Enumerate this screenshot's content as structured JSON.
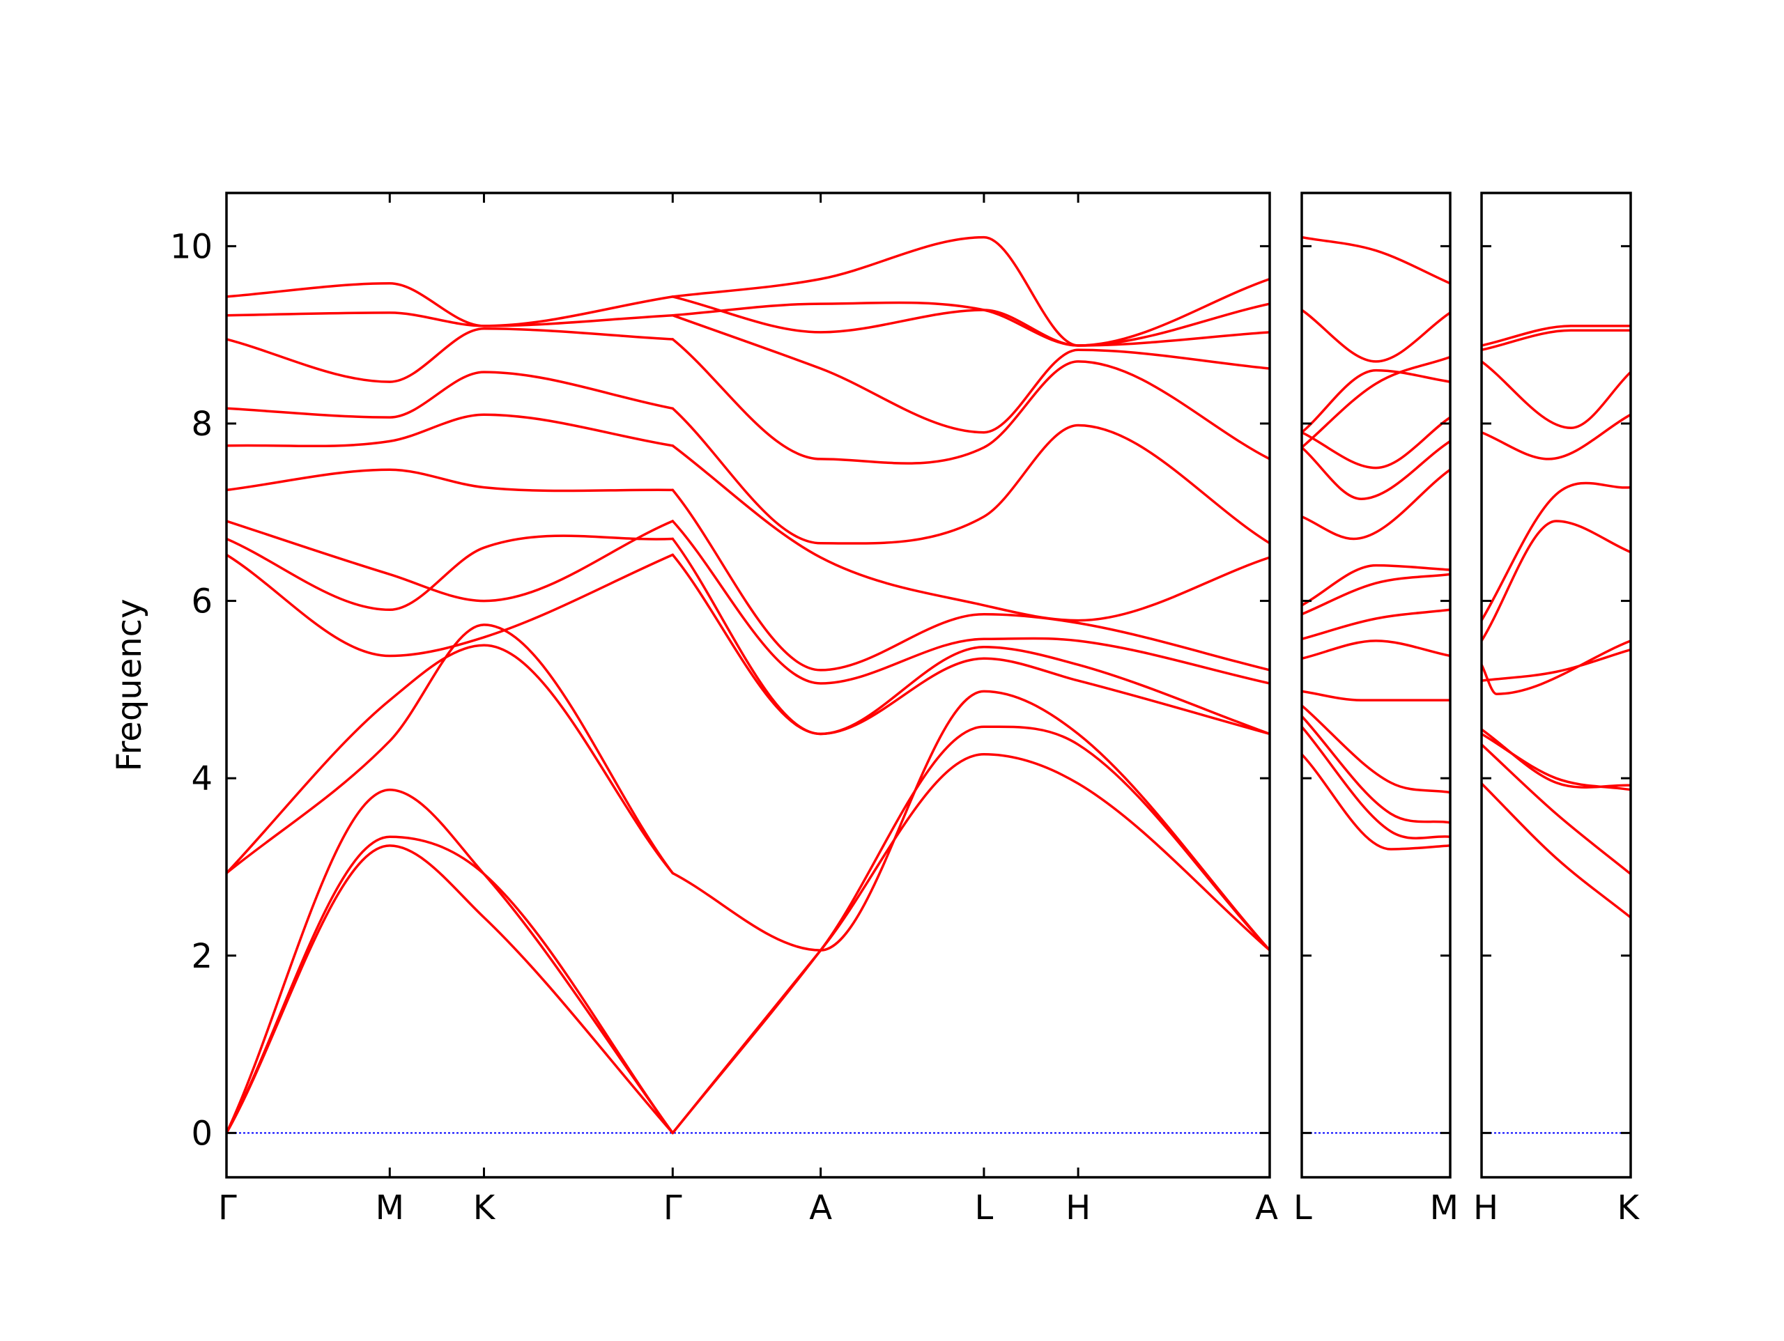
{
  "chart_data": {
    "type": "line",
    "title": "",
    "ylabel": "Frequency",
    "xlabel": "",
    "ylim": [
      -0.5,
      10.6
    ],
    "yticks": [
      0,
      2,
      4,
      6,
      8,
      10
    ],
    "ytick_labels": [
      "0",
      "2",
      "4",
      "6",
      "8",
      "10"
    ],
    "grid": false,
    "legend": "none",
    "colors": {
      "bands": "#ff0000",
      "zero_line": "#0000ff",
      "frame": "#000000"
    },
    "panels": [
      {
        "id": "main",
        "path_labels": [
          "Γ",
          "M",
          "K",
          "Γ",
          "A",
          "L",
          "H",
          "A"
        ],
        "path_positions": [
          0,
          0.577,
          0.91,
          1.577,
          2.1,
          2.677,
          3.01,
          3.687
        ],
        "bands": [
          [
            [
              0,
              0
            ],
            [
              0.577,
              3.24
            ],
            [
              0.91,
              2.43
            ],
            [
              1.577,
              0
            ]
          ],
          [
            [
              0,
              0
            ],
            [
              0.577,
              3.34
            ],
            [
              0.91,
              2.92
            ],
            [
              1.577,
              0
            ]
          ],
          [
            [
              0,
              0
            ],
            [
              0.577,
              3.87
            ],
            [
              0.91,
              2.92
            ],
            [
              1.577,
              0
            ]
          ],
          [
            [
              0,
              2.93
            ],
            [
              0.577,
              4.42
            ],
            [
              0.91,
              5.73
            ],
            [
              1.577,
              2.93
            ]
          ],
          [
            [
              0,
              2.93
            ],
            [
              0.577,
              4.88
            ],
            [
              0.91,
              5.5
            ],
            [
              1.577,
              2.93
            ]
          ],
          [
            [
              0,
              6.52
            ],
            [
              0.577,
              5.38
            ],
            [
              0.91,
              5.59
            ],
            [
              1.577,
              6.52
            ]
          ],
          [
            [
              0,
              6.7
            ],
            [
              0.577,
              5.9
            ],
            [
              0.91,
              6.6
            ],
            [
              1.577,
              6.7
            ]
          ],
          [
            [
              0,
              6.9
            ],
            [
              0.577,
              6.3
            ],
            [
              0.91,
              6.0
            ],
            [
              1.577,
              6.9
            ]
          ],
          [
            [
              0,
              7.25
            ],
            [
              0.577,
              7.48
            ],
            [
              0.91,
              7.28
            ],
            [
              1.577,
              7.25
            ]
          ],
          [
            [
              0,
              7.75
            ],
            [
              0.577,
              7.8
            ],
            [
              0.91,
              8.1
            ],
            [
              1.577,
              7.75
            ]
          ],
          [
            [
              0,
              8.17
            ],
            [
              0.577,
              8.07
            ],
            [
              0.91,
              8.58
            ],
            [
              1.577,
              8.17
            ]
          ],
          [
            [
              0,
              8.95
            ],
            [
              0.577,
              8.47
            ],
            [
              0.91,
              9.07
            ],
            [
              1.577,
              8.95
            ]
          ],
          [
            [
              0,
              9.22
            ],
            [
              0.577,
              9.25
            ],
            [
              0.91,
              9.1
            ],
            [
              1.577,
              9.22
            ]
          ],
          [
            [
              0,
              9.43
            ],
            [
              0.577,
              9.58
            ],
            [
              0.91,
              9.1
            ],
            [
              1.577,
              9.43
            ]
          ],
          [
            [
              1.577,
              0
            ],
            [
              2.1,
              2.06
            ],
            [
              2.677,
              4.27
            ],
            [
              3.01,
              3.94
            ],
            [
              3.687,
              2.06
            ]
          ],
          [
            [
              1.577,
              0
            ],
            [
              2.1,
              2.06
            ],
            [
              2.677,
              4.58
            ],
            [
              3.01,
              4.38
            ],
            [
              3.687,
              2.06
            ]
          ],
          [
            [
              1.577,
              2.93
            ],
            [
              2.1,
              2.06
            ],
            [
              2.677,
              4.98
            ],
            [
              3.01,
              4.5
            ],
            [
              3.687,
              2.06
            ]
          ],
          [
            [
              1.577,
              6.52
            ],
            [
              2.1,
              4.5
            ],
            [
              2.677,
              5.35
            ],
            [
              3.01,
              5.1
            ],
            [
              3.687,
              4.5
            ]
          ],
          [
            [
              1.577,
              6.7
            ],
            [
              2.1,
              4.5
            ],
            [
              2.677,
              5.48
            ],
            [
              3.01,
              5.28
            ],
            [
              3.687,
              4.5
            ]
          ],
          [
            [
              1.577,
              6.9
            ],
            [
              2.1,
              5.07
            ],
            [
              2.677,
              5.57
            ],
            [
              3.01,
              5.55
            ],
            [
              3.687,
              5.07
            ]
          ],
          [
            [
              1.577,
              7.25
            ],
            [
              2.1,
              5.22
            ],
            [
              2.677,
              5.85
            ],
            [
              3.01,
              5.75
            ],
            [
              3.687,
              5.22
            ]
          ],
          [
            [
              1.577,
              7.75
            ],
            [
              2.1,
              6.49
            ],
            [
              2.677,
              5.95
            ],
            [
              3.01,
              5.78
            ],
            [
              3.687,
              6.49
            ]
          ],
          [
            [
              1.577,
              8.17
            ],
            [
              2.1,
              6.65
            ],
            [
              2.677,
              6.95
            ],
            [
              3.01,
              7.98
            ],
            [
              3.687,
              6.65
            ]
          ],
          [
            [
              1.577,
              8.95
            ],
            [
              2.1,
              7.6
            ],
            [
              2.677,
              7.73
            ],
            [
              3.01,
              8.7
            ],
            [
              3.687,
              7.6
            ]
          ],
          [
            [
              1.577,
              9.22
            ],
            [
              2.1,
              8.62
            ],
            [
              2.677,
              7.9
            ],
            [
              3.01,
              8.83
            ],
            [
              3.687,
              8.62
            ]
          ],
          [
            [
              1.577,
              9.43
            ],
            [
              2.1,
              9.03
            ],
            [
              2.677,
              9.28
            ],
            [
              3.01,
              8.88
            ],
            [
              3.687,
              9.03
            ]
          ],
          [
            [
              1.577,
              9.22
            ],
            [
              2.1,
              9.35
            ],
            [
              2.677,
              9.28
            ],
            [
              3.01,
              8.88
            ],
            [
              3.687,
              9.35
            ]
          ],
          [
            [
              1.577,
              9.43
            ],
            [
              2.1,
              9.63
            ],
            [
              2.677,
              10.1
            ],
            [
              3.01,
              8.88
            ],
            [
              3.687,
              9.63
            ]
          ]
        ]
      },
      {
        "id": "L-M",
        "path_labels": [
          "L",
          "M"
        ],
        "path_positions": [
          0,
          1
        ],
        "bands": [
          [
            [
              0,
              4.27
            ],
            [
              0.6,
              3.2
            ],
            [
              1,
              3.24
            ]
          ],
          [
            [
              0,
              4.58
            ],
            [
              0.6,
              3.4
            ],
            [
              1,
              3.34
            ]
          ],
          [
            [
              0,
              4.7
            ],
            [
              0.6,
              3.6
            ],
            [
              1,
              3.5
            ]
          ],
          [
            [
              0,
              4.82
            ],
            [
              0.6,
              3.95
            ],
            [
              1,
              3.84
            ]
          ],
          [
            [
              0,
              4.98
            ],
            [
              0.4,
              4.88
            ],
            [
              1,
              4.88
            ]
          ],
          [
            [
              0,
              5.35
            ],
            [
              0.5,
              5.55
            ],
            [
              1,
              5.38
            ]
          ],
          [
            [
              0,
              5.57
            ],
            [
              0.5,
              5.8
            ],
            [
              1,
              5.9
            ]
          ],
          [
            [
              0,
              5.85
            ],
            [
              0.5,
              6.2
            ],
            [
              1,
              6.3
            ]
          ],
          [
            [
              0,
              5.95
            ],
            [
              0.5,
              6.4
            ],
            [
              1,
              6.35
            ]
          ],
          [
            [
              0,
              6.95
            ],
            [
              0.35,
              6.7
            ],
            [
              1,
              7.48
            ]
          ],
          [
            [
              0,
              7.73
            ],
            [
              0.4,
              7.15
            ],
            [
              1,
              7.8
            ]
          ],
          [
            [
              0,
              7.9
            ],
            [
              0.5,
              7.5
            ],
            [
              1,
              8.07
            ]
          ],
          [
            [
              0,
              7.9
            ],
            [
              0.5,
              8.6
            ],
            [
              1,
              8.47
            ]
          ],
          [
            [
              0,
              7.73
            ],
            [
              0.5,
              8.45
            ],
            [
              1,
              8.75
            ]
          ],
          [
            [
              0,
              9.28
            ],
            [
              0.5,
              8.7
            ],
            [
              1,
              9.25
            ]
          ],
          [
            [
              0,
              10.1
            ],
            [
              0.5,
              9.95
            ],
            [
              1,
              9.58
            ]
          ]
        ]
      },
      {
        "id": "H-K",
        "path_labels": [
          "H",
          "K"
        ],
        "path_positions": [
          0,
          1
        ],
        "bands": [
          [
            [
              0,
              3.94
            ],
            [
              0.5,
              3.1
            ],
            [
              1,
              2.43
            ]
          ],
          [
            [
              0,
              4.38
            ],
            [
              0.5,
              3.6
            ],
            [
              1,
              2.92
            ]
          ],
          [
            [
              0,
              4.5
            ],
            [
              0.5,
              4.0
            ],
            [
              1,
              3.87
            ]
          ],
          [
            [
              0,
              4.55
            ],
            [
              0.5,
              3.95
            ],
            [
              1,
              3.92
            ]
          ],
          [
            [
              0,
              5.1
            ],
            [
              0.5,
              5.2
            ],
            [
              1,
              5.45
            ]
          ],
          [
            [
              0,
              5.28
            ],
            [
              0.1,
              4.95
            ],
            [
              1,
              5.55
            ]
          ],
          [
            [
              0,
              5.55
            ],
            [
              0.5,
              6.9
            ],
            [
              1,
              6.55
            ]
          ],
          [
            [
              0,
              5.78
            ],
            [
              0.5,
              7.2
            ],
            [
              1,
              7.28
            ]
          ],
          [
            [
              0,
              7.9
            ],
            [
              0.45,
              7.6
            ],
            [
              1,
              8.1
            ]
          ],
          [
            [
              0,
              8.7
            ],
            [
              0.6,
              7.95
            ],
            [
              1,
              8.58
            ]
          ],
          [
            [
              0,
              8.83
            ],
            [
              0.6,
              9.05
            ],
            [
              1,
              9.05
            ]
          ],
          [
            [
              0,
              8.88
            ],
            [
              0.6,
              9.1
            ],
            [
              1,
              9.1
            ]
          ]
        ]
      }
    ]
  }
}
